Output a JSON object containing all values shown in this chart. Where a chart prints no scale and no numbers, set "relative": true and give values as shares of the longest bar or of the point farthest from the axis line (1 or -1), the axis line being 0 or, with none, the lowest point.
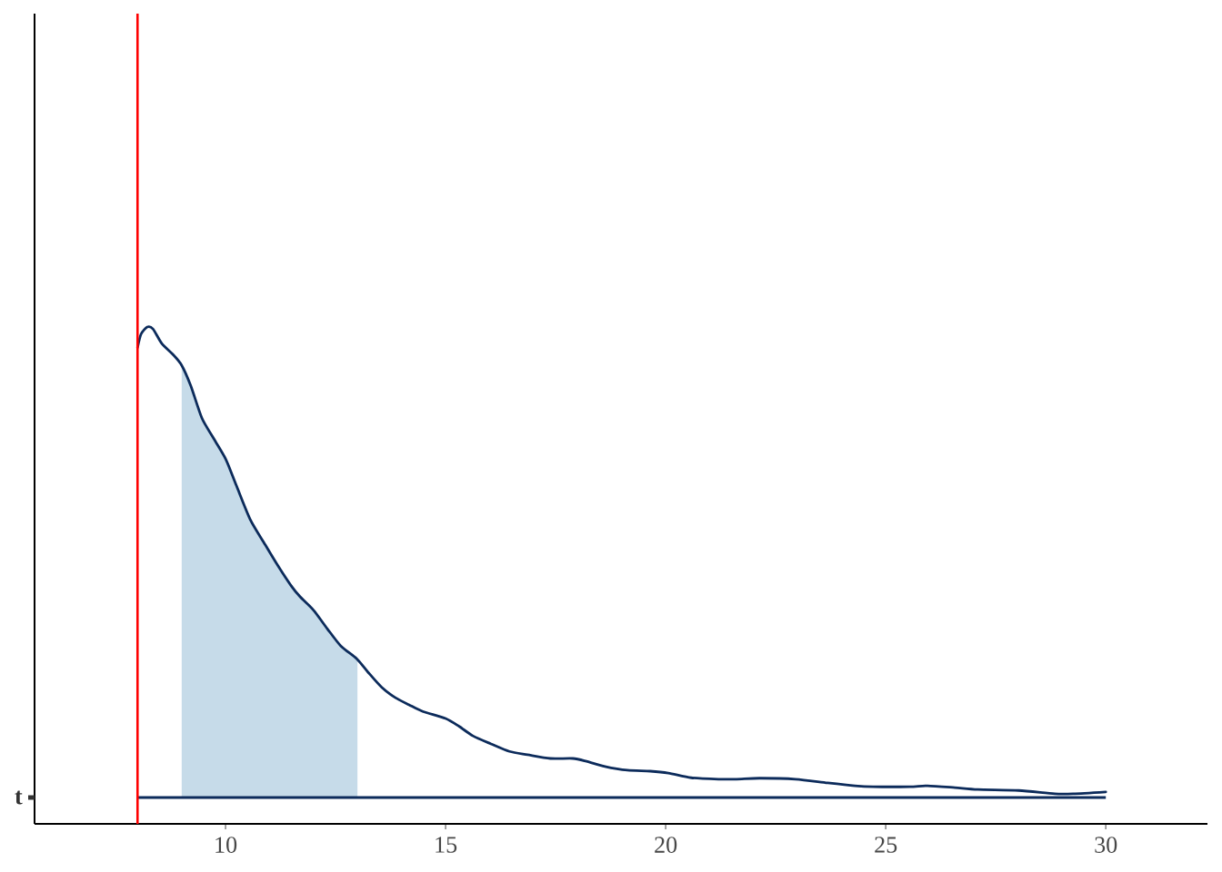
{
  "chart_data": {
    "type": "line",
    "relative": true,
    "series": [
      {
        "name": "t",
        "color": "#0c2b5b",
        "x": [
          8.0,
          8.08,
          8.22,
          8.35,
          8.55,
          8.8,
          9.0,
          9.21,
          9.46,
          9.73,
          10.0,
          10.25,
          10.56,
          10.87,
          11.18,
          11.49,
          11.69,
          12.0,
          12.31,
          12.62,
          12.98,
          13.24,
          13.55,
          13.86,
          14.17,
          14.48,
          15.0,
          15.31,
          15.62,
          16.03,
          16.45,
          16.86,
          17.38,
          17.89,
          18.2,
          18.62,
          19.13,
          19.65,
          20.06,
          20.58,
          21.2,
          21.61,
          22.13,
          22.95,
          23.68,
          24.3,
          24.71,
          25.54,
          25.95,
          26.57,
          27.09,
          28.02,
          28.84,
          29.26,
          30.0
        ],
        "values": [
          0.956,
          0.985,
          1.0,
          0.996,
          0.965,
          0.942,
          0.919,
          0.875,
          0.807,
          0.763,
          0.72,
          0.662,
          0.591,
          0.542,
          0.494,
          0.45,
          0.427,
          0.398,
          0.359,
          0.322,
          0.295,
          0.266,
          0.234,
          0.212,
          0.197,
          0.183,
          0.168,
          0.151,
          0.131,
          0.114,
          0.098,
          0.091,
          0.083,
          0.083,
          0.077,
          0.066,
          0.058,
          0.056,
          0.052,
          0.042,
          0.039,
          0.039,
          0.041,
          0.039,
          0.031,
          0.025,
          0.023,
          0.023,
          0.025,
          0.021,
          0.017,
          0.015,
          0.008,
          0.008,
          0.012
        ]
      }
    ],
    "xlim": [
      5.66,
      32.31
    ],
    "xticks": [
      10,
      15,
      20,
      25,
      30
    ],
    "ref_lines": [
      {
        "axis": "y",
        "value": 0,
        "color": "#0c2b5b"
      },
      {
        "axis": "x",
        "value": 8,
        "color": "#ff0000"
      }
    ],
    "bands": [
      {
        "axis": "x",
        "from": 9,
        "to": 13,
        "color": "#c6dbe9"
      }
    ]
  }
}
